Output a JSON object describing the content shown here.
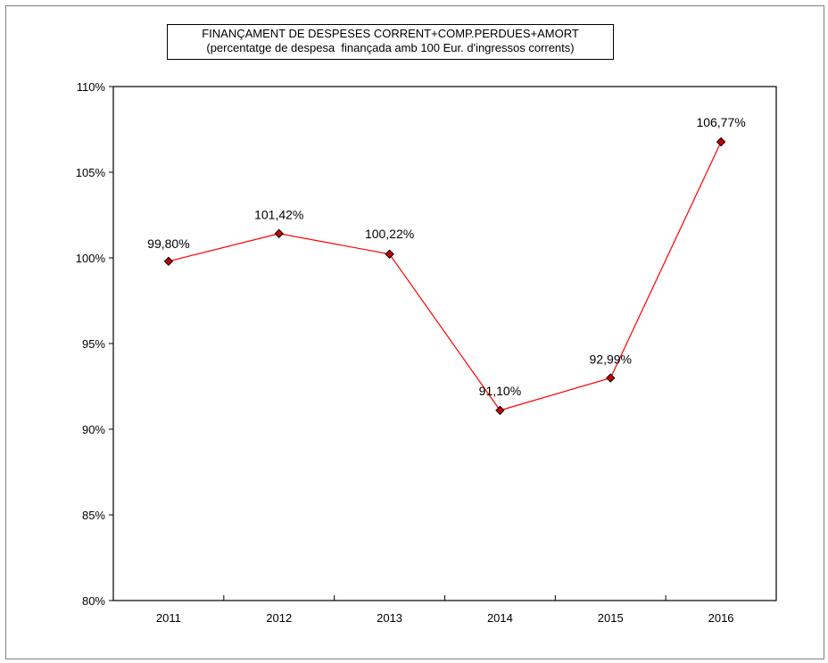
{
  "chart_data": {
    "type": "line",
    "title": "FINANÇAMENT DE DESPESES CORRENT+COMP.PERDUES+AMORT",
    "subtitle": "(percentatge de despesa  finançada amb 100 Eur. d'ingressos corrents)",
    "categories": [
      "2011",
      "2012",
      "2013",
      "2014",
      "2015",
      "2016"
    ],
    "series": [
      {
        "values": [
          99.8,
          101.42,
          100.22,
          91.1,
          92.99,
          106.77
        ],
        "labels": [
          "99,80%",
          "101,42%",
          "100,22%",
          "91,10%",
          "92,99%",
          "106,77%"
        ],
        "line_color": "#ff0000",
        "marker_color": "#cc0000",
        "marker": "diamond"
      }
    ],
    "ylim": [
      80,
      110
    ],
    "yticks": [
      80,
      85,
      90,
      95,
      100,
      105,
      110
    ],
    "ytick_labels": [
      "80%",
      "85%",
      "90%",
      "95%",
      "100%",
      "105%",
      "110%"
    ],
    "grid": false,
    "xlabel": "",
    "ylabel": ""
  }
}
